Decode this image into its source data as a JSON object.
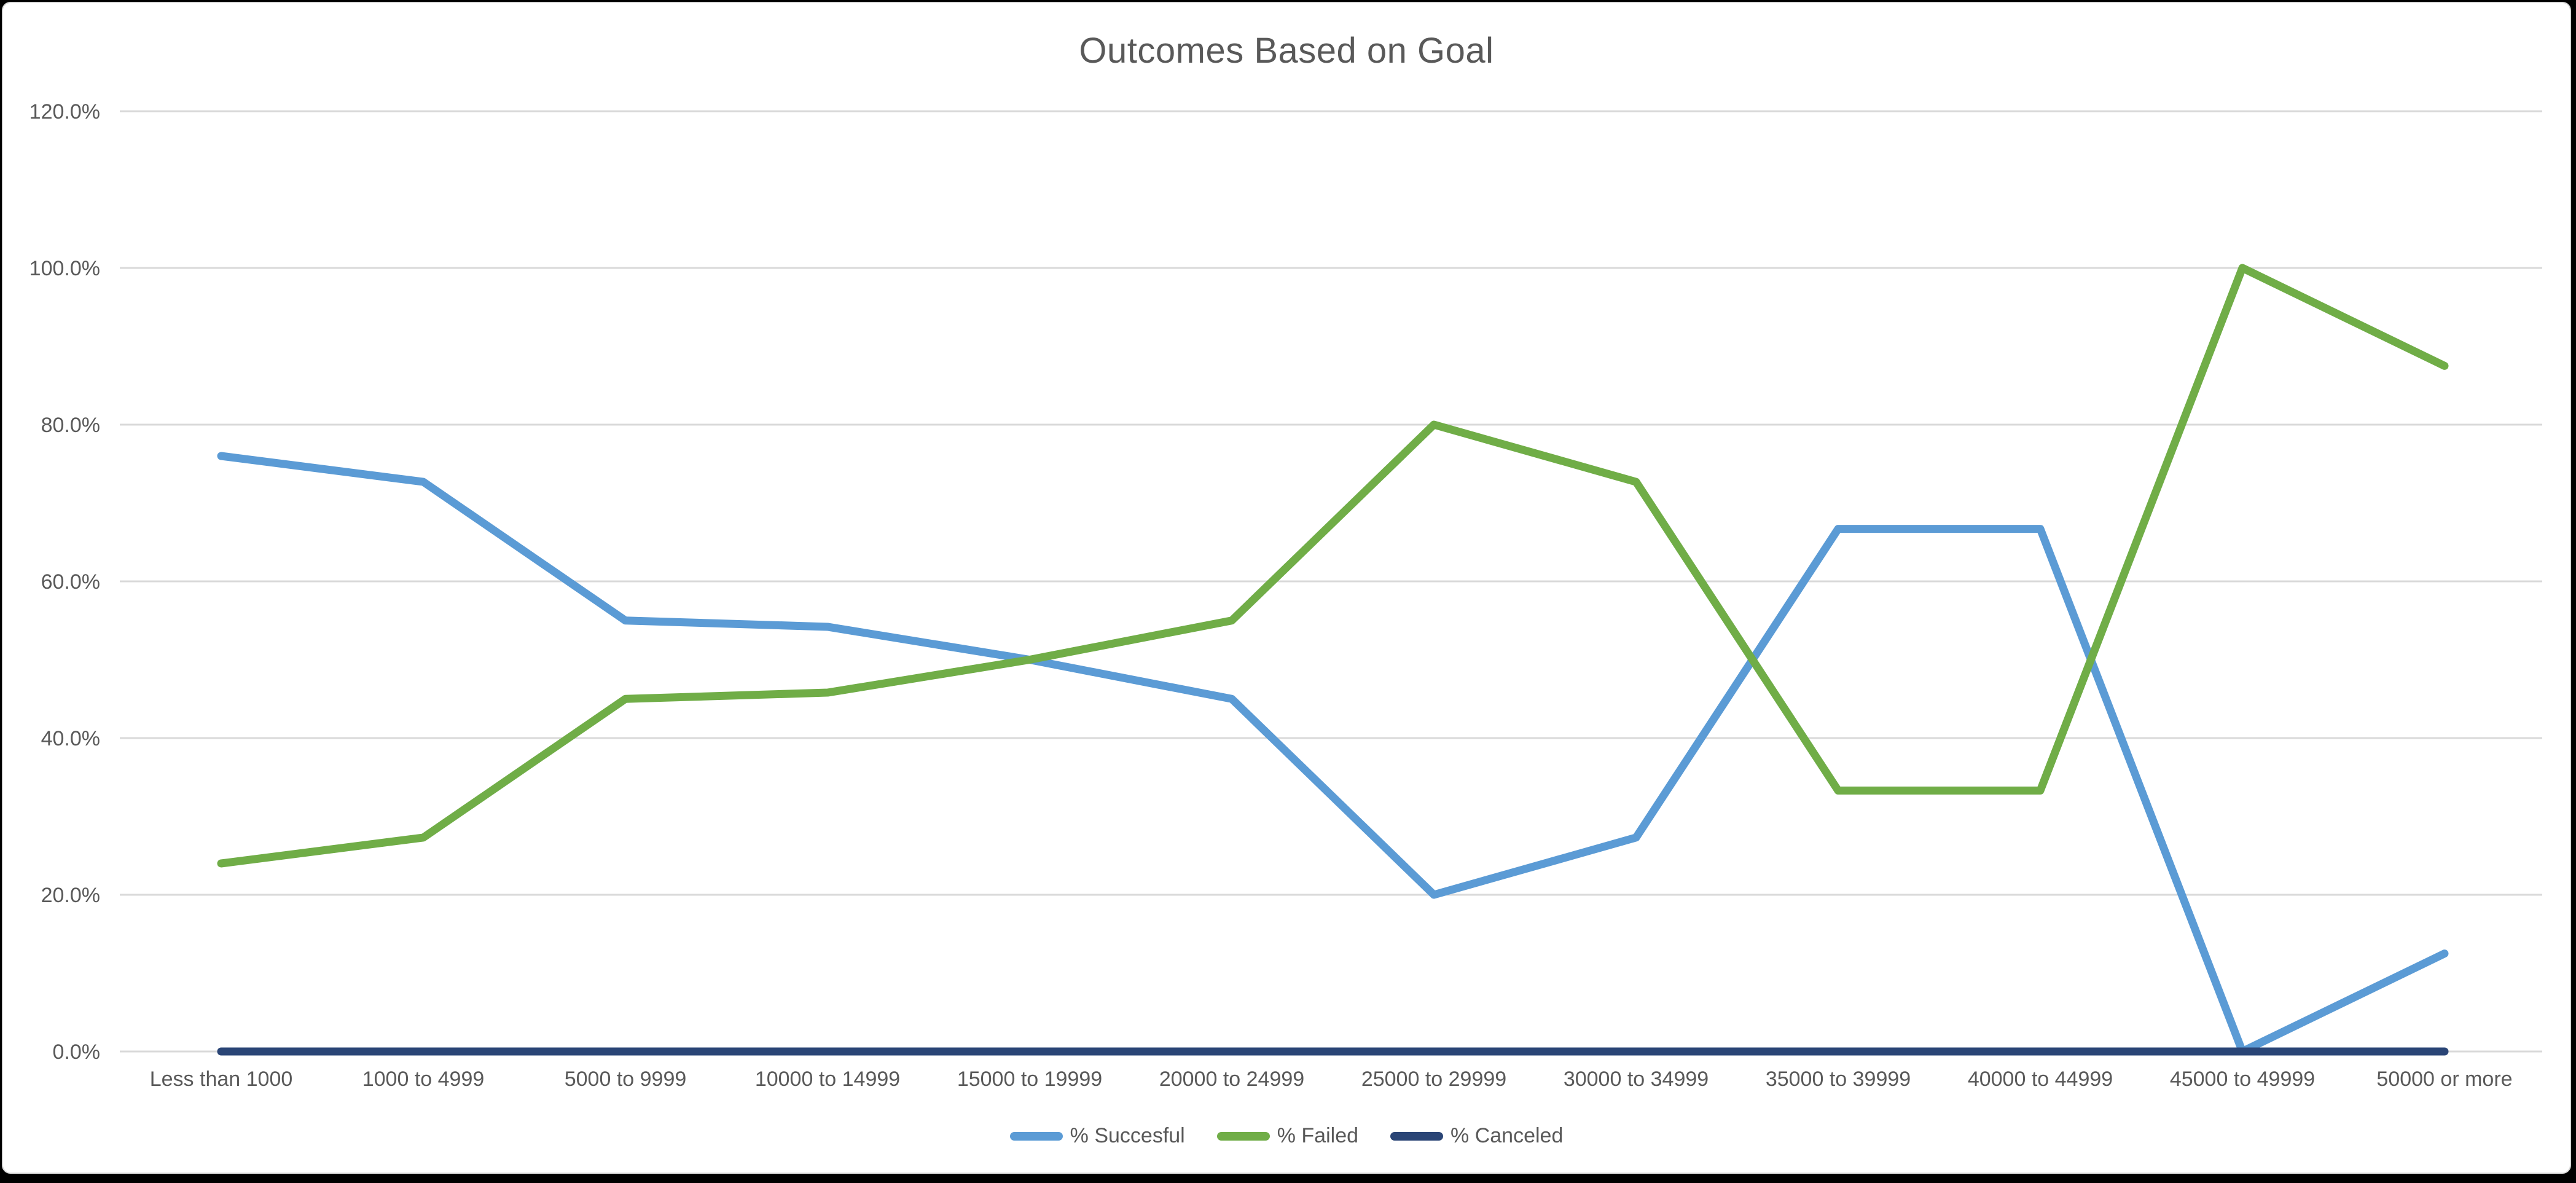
{
  "window": {
    "frame_color": "#000000",
    "surface_color": "#ffffff",
    "edge_color": "#d9d9d9"
  },
  "chart_data": {
    "type": "line",
    "title": "Outcomes Based on Goal",
    "categories": [
      "Less than 1000",
      "1000 to 4999",
      "5000 to 9999",
      "10000 to 14999",
      "15000 to 19999",
      "20000 to 24999",
      "25000 to 29999",
      "30000 to 34999",
      "35000 to 39999",
      "40000 to 44999",
      "45000 to 49999",
      "50000 or more"
    ],
    "series": [
      {
        "name": "% Succesful",
        "color": "#5B9BD5",
        "values": [
          76.0,
          72.7,
          55.0,
          54.2,
          50.0,
          45.0,
          20.0,
          27.3,
          66.7,
          66.7,
          0.0,
          12.5
        ]
      },
      {
        "name": "% Failed",
        "color": "#70AD47",
        "values": [
          24.0,
          27.3,
          45.0,
          45.8,
          50.0,
          55.0,
          80.0,
          72.7,
          33.3,
          33.3,
          100.0,
          87.5
        ]
      },
      {
        "name": "% Canceled",
        "color": "#2A4576",
        "values": [
          0.0,
          0.0,
          0.0,
          0.0,
          0.0,
          0.0,
          0.0,
          0.0,
          0.0,
          0.0,
          0.0,
          0.0
        ]
      }
    ],
    "y_axis": {
      "min": 0,
      "max": 120,
      "step": 20,
      "tick_labels": [
        "0.0%",
        "20.0%",
        "40.0%",
        "60.0%",
        "80.0%",
        "100.0%",
        "120.0%"
      ]
    },
    "xlabel": "",
    "ylabel": "",
    "grid": true,
    "gridline_color": "#D9D9D9",
    "text_color": "#595959",
    "legend_position": "bottom"
  }
}
